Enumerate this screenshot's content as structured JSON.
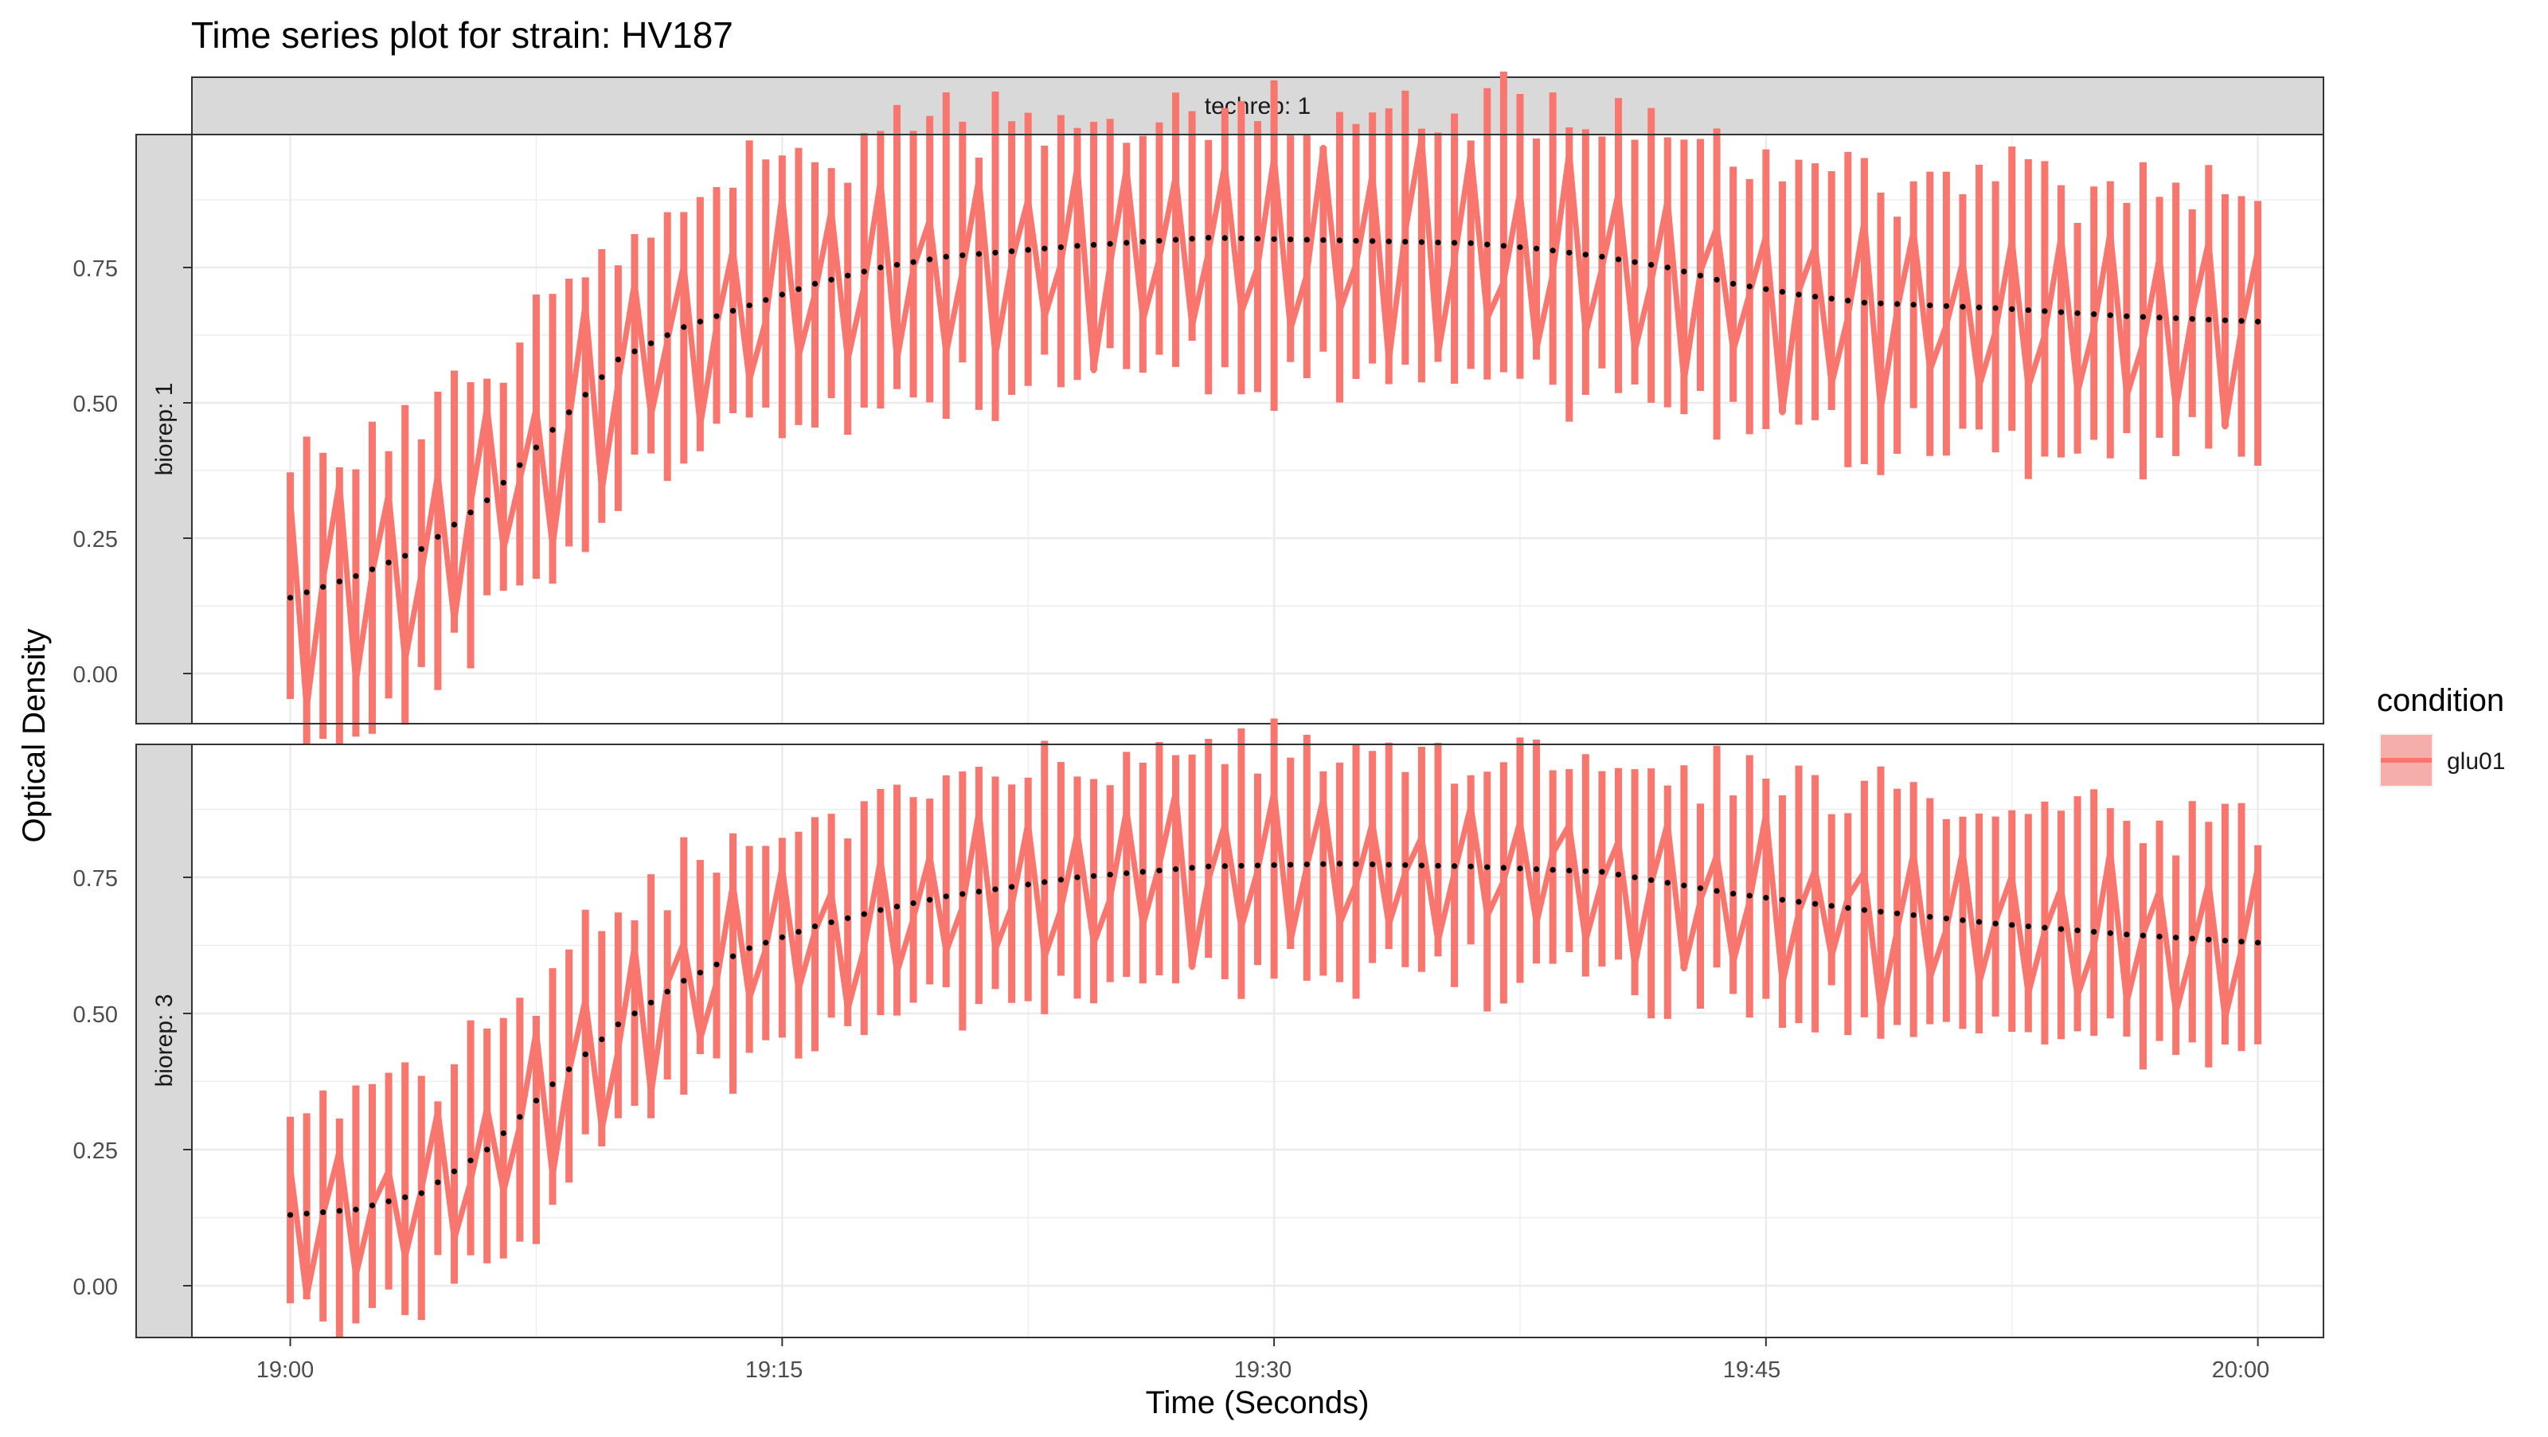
{
  "chart_data": {
    "type": "line",
    "title": "Time series plot for strain: HV187",
    "xlabel": "Time (Seconds)",
    "ylabel": "Optical Density",
    "x_ticks": [
      "19:00",
      "19:15",
      "19:30",
      "19:45",
      "20:00"
    ],
    "y_ticks": [
      "0.00",
      "0.25",
      "0.50",
      "0.75"
    ],
    "x_range_minutes": [
      -3,
      62
    ],
    "ylim": [
      -0.09,
      0.99
    ],
    "grid": true,
    "legend": {
      "title": "condition",
      "placement": "right",
      "entries": [
        {
          "label": "glu01",
          "color": "#F8766D"
        }
      ]
    },
    "colors": {
      "condition": "#F8766D",
      "mean": "#000000",
      "strip": "#D9D9D9",
      "grid": "#EBEBEB"
    },
    "sampling": {
      "start_minute": 0,
      "interval_minutes": 0.5,
      "end_minute": 60
    },
    "facets": [
      {
        "column_label": "techrep: 1",
        "row_label": "biorep: 1",
        "mean_keypoints": [
          [
            0,
            0.14
          ],
          [
            2,
            0.18
          ],
          [
            4,
            0.23
          ],
          [
            6,
            0.32
          ],
          [
            8,
            0.45
          ],
          [
            10,
            0.58
          ],
          [
            12,
            0.64
          ],
          [
            14,
            0.68
          ],
          [
            16,
            0.72
          ],
          [
            18,
            0.75
          ],
          [
            20,
            0.77
          ],
          [
            24,
            0.79
          ],
          [
            28,
            0.805
          ],
          [
            32,
            0.8
          ],
          [
            36,
            0.795
          ],
          [
            38,
            0.785
          ],
          [
            40,
            0.77
          ],
          [
            42,
            0.75
          ],
          [
            44,
            0.72
          ],
          [
            46,
            0.7
          ],
          [
            48,
            0.685
          ],
          [
            52,
            0.675
          ],
          [
            56,
            0.66
          ],
          [
            60,
            0.65
          ]
        ],
        "replicate_offsets": [
          0.24,
          0.13,
          -0.17,
          -0.25
        ],
        "noise_amplitude": 0.05
      },
      {
        "column_label": "techrep: 1",
        "row_label": "biorep: 3",
        "mean_keypoints": [
          [
            0,
            0.13
          ],
          [
            2,
            0.14
          ],
          [
            4,
            0.17
          ],
          [
            6,
            0.25
          ],
          [
            8,
            0.37
          ],
          [
            10,
            0.48
          ],
          [
            12,
            0.56
          ],
          [
            14,
            0.62
          ],
          [
            16,
            0.66
          ],
          [
            18,
            0.69
          ],
          [
            20,
            0.715
          ],
          [
            24,
            0.75
          ],
          [
            28,
            0.77
          ],
          [
            32,
            0.775
          ],
          [
            36,
            0.77
          ],
          [
            40,
            0.76
          ],
          [
            44,
            0.72
          ],
          [
            48,
            0.69
          ],
          [
            52,
            0.665
          ],
          [
            56,
            0.645
          ],
          [
            60,
            0.63
          ]
        ],
        "replicate_offsets": [
          0.21,
          0.11,
          -0.13,
          -0.2
        ],
        "noise_amplitude": 0.045
      }
    ]
  }
}
